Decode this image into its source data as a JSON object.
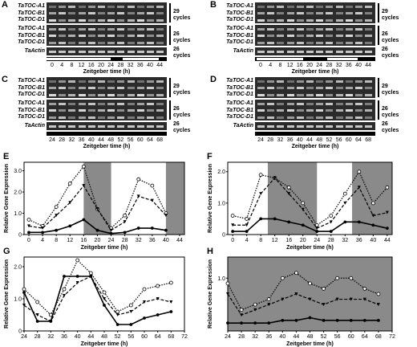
{
  "gel_panels": [
    {
      "label": "A",
      "genes_top": [
        "TaTOC-A1",
        "TaTOC-B1",
        "TaTOC-D1"
      ],
      "cycles_top": "29",
      "genes_mid": [
        "TaTOC-A1",
        "TaTOC-B1",
        "TaTOC-D1"
      ],
      "cycles_mid": "26",
      "actin": "TaActin",
      "actin_cycles": "26",
      "cycles_word": "cycles",
      "ticks": [
        "0",
        "4",
        "8",
        "12",
        "16",
        "20",
        "24",
        "28",
        "32",
        "36",
        "40",
        "44"
      ],
      "xtitle": "Zeitgeber time (h)"
    },
    {
      "label": "B",
      "genes_top": [
        "TaTOC-A1",
        "TaTOC-B1",
        "TaTOC-D1"
      ],
      "cycles_top": "29",
      "genes_mid": [
        "TaTOC-A1",
        "TaTOC-B1",
        "TaTOC-D1"
      ],
      "cycles_mid": "26",
      "actin": "TaActin",
      "actin_cycles": "26",
      "cycles_word": "cycles",
      "ticks": [
        "0",
        "4",
        "8",
        "12",
        "16",
        "20",
        "24",
        "28",
        "32",
        "36",
        "40",
        "44"
      ],
      "xtitle": "Zeitgeber time (h)"
    },
    {
      "label": "C",
      "genes_top": [
        "TaTOC-A1",
        "TaTOC-B1",
        "TaTOC-D1"
      ],
      "cycles_top": "29",
      "genes_mid": [
        "TaTOC-A1",
        "TaTOC-B1",
        "TaTOC-D1"
      ],
      "cycles_mid": "26",
      "actin": "TaActin",
      "actin_cycles": "26",
      "cycles_word": "cycles",
      "ticks": [
        "24",
        "28",
        "32",
        "36",
        "40",
        "44",
        "48",
        "52",
        "56",
        "60",
        "64",
        "68"
      ],
      "xtitle": "Zeitgeber time (h)"
    },
    {
      "label": "D",
      "genes_top": [
        "TaTOC-A1",
        "TaTOC-B1",
        "TaTOC-D1"
      ],
      "cycles_top": "29",
      "genes_mid": [
        "TaTOC-A1",
        "TaTOC-B1",
        "TaTOC-D1"
      ],
      "cycles_mid": "26",
      "actin": "TaActin",
      "actin_cycles": "26",
      "cycles_word": "cycles",
      "ticks": [
        "24",
        "28",
        "32",
        "36",
        "40",
        "44",
        "48",
        "52",
        "56",
        "60",
        "64",
        "68"
      ],
      "xtitle": "Zeitgeber time (h)"
    }
  ],
  "chart_data": [
    {
      "panel": "E",
      "type": "line",
      "ylabel": "Relative Gene Expression",
      "xlabel": "Zeitgeber time (h)",
      "x": [
        0,
        4,
        8,
        12,
        16,
        20,
        24,
        28,
        32,
        36,
        40,
        44
      ],
      "xticks": [
        "0",
        "4",
        "8",
        "12",
        "16",
        "20",
        "24",
        "28",
        "32",
        "36",
        "40",
        "44"
      ],
      "ylim": [
        0,
        3.4
      ],
      "yticks": [
        "0",
        "1.0",
        "2.0",
        "3.0"
      ],
      "shaded": [
        [
          16,
          24
        ],
        [
          40,
          46
        ]
      ],
      "series": [
        {
          "style": "dotted",
          "values": [
            0.7,
            0.4,
            1.3,
            2.4,
            3.2,
            1.2,
            0.3,
            0.9,
            2.6,
            2.3,
            1.0,
            null
          ]
        },
        {
          "style": "dashed",
          "values": [
            0.4,
            0.3,
            0.9,
            1.5,
            2.3,
            1.2,
            0.2,
            0.6,
            1.8,
            1.6,
            0.9,
            null
          ]
        },
        {
          "style": "solid",
          "values": [
            0.1,
            0.1,
            0.2,
            0.4,
            0.7,
            0.2,
            0.05,
            0.1,
            0.3,
            0.3,
            0.2,
            null
          ]
        }
      ]
    },
    {
      "panel": "F",
      "type": "line",
      "ylabel": "Relative Gene Expression",
      "xlabel": "Zeitgeber time (h)",
      "x": [
        0,
        4,
        8,
        12,
        16,
        20,
        24,
        28,
        32,
        36,
        40,
        44
      ],
      "xticks": [
        "0",
        "4",
        "8",
        "12",
        "16",
        "20",
        "24",
        "28",
        "32",
        "36",
        "40",
        "44"
      ],
      "ylim": [
        0,
        2.3
      ],
      "yticks": [
        "0",
        "1.0",
        "2.0"
      ],
      "shaded": [
        [
          10,
          24
        ],
        [
          34,
          46
        ]
      ],
      "series": [
        {
          "style": "dotted",
          "values": [
            0.6,
            0.5,
            1.9,
            1.8,
            1.5,
            1.0,
            0.3,
            0.6,
            1.3,
            2.0,
            1.0,
            1.5
          ]
        },
        {
          "style": "dashed",
          "values": [
            0.3,
            0.3,
            1.3,
            1.8,
            1.3,
            0.8,
            0.2,
            0.4,
            1.0,
            1.5,
            0.6,
            0.7
          ]
        },
        {
          "style": "solid",
          "values": [
            0.1,
            0.1,
            0.5,
            0.5,
            0.4,
            0.3,
            0.1,
            0.1,
            0.4,
            0.4,
            0.3,
            0.2
          ]
        }
      ]
    },
    {
      "panel": "G",
      "type": "line",
      "ylabel": "Relative Gene Expression",
      "xlabel": "Zeitgeber time (h)",
      "x": [
        24,
        28,
        32,
        36,
        40,
        44,
        48,
        52,
        56,
        60,
        64,
        68
      ],
      "xticks": [
        "24",
        "28",
        "32",
        "36",
        "40",
        "44",
        "48",
        "52",
        "56",
        "60",
        "64",
        "68",
        "72"
      ],
      "xlim": [
        24,
        72
      ],
      "ylim": [
        0,
        2.3
      ],
      "yticks": [
        "0",
        "1.0",
        "2.0"
      ],
      "shaded": [],
      "series": [
        {
          "style": "dotted",
          "values": [
            1.3,
            0.9,
            0.5,
            1.3,
            2.2,
            1.8,
            1.2,
            0.6,
            0.8,
            1.3,
            1.4,
            1.5
          ]
        },
        {
          "style": "dashed",
          "values": [
            0.8,
            0.5,
            0.3,
            1.1,
            1.5,
            1.7,
            1.0,
            0.5,
            0.6,
            0.9,
            1.0,
            0.9
          ]
        },
        {
          "style": "solid",
          "values": [
            1.2,
            0.3,
            0.3,
            1.7,
            1.7,
            1.7,
            0.8,
            0.2,
            0.2,
            0.4,
            0.5,
            0.6
          ]
        }
      ]
    },
    {
      "panel": "H",
      "type": "line",
      "ylabel": "Relative Gene Expression",
      "xlabel": "Zeitgeber time (h)",
      "x": [
        24,
        28,
        32,
        36,
        40,
        44,
        48,
        52,
        56,
        60,
        64,
        68
      ],
      "xticks": [
        "24",
        "28",
        "32",
        "36",
        "40",
        "44",
        "48",
        "52",
        "56",
        "60",
        "64",
        "68",
        "72"
      ],
      "xlim": [
        24,
        72
      ],
      "ylim": [
        0,
        1.4
      ],
      "yticks": [
        "1.0"
      ],
      "shaded": [
        [
          24,
          72
        ]
      ],
      "series": [
        {
          "style": "dotted",
          "values": [
            0.9,
            0.4,
            0.5,
            0.6,
            1.0,
            1.1,
            0.9,
            0.8,
            1.0,
            1.0,
            0.8,
            0.7
          ]
        },
        {
          "style": "dashed",
          "values": [
            0.7,
            0.3,
            0.4,
            0.5,
            0.6,
            0.7,
            0.6,
            0.5,
            0.6,
            0.6,
            0.6,
            0.5
          ]
        },
        {
          "style": "solid",
          "values": [
            0.15,
            0.15,
            0.15,
            0.15,
            0.2,
            0.2,
            0.25,
            0.2,
            0.2,
            0.2,
            0.2,
            0.2
          ]
        }
      ]
    }
  ]
}
